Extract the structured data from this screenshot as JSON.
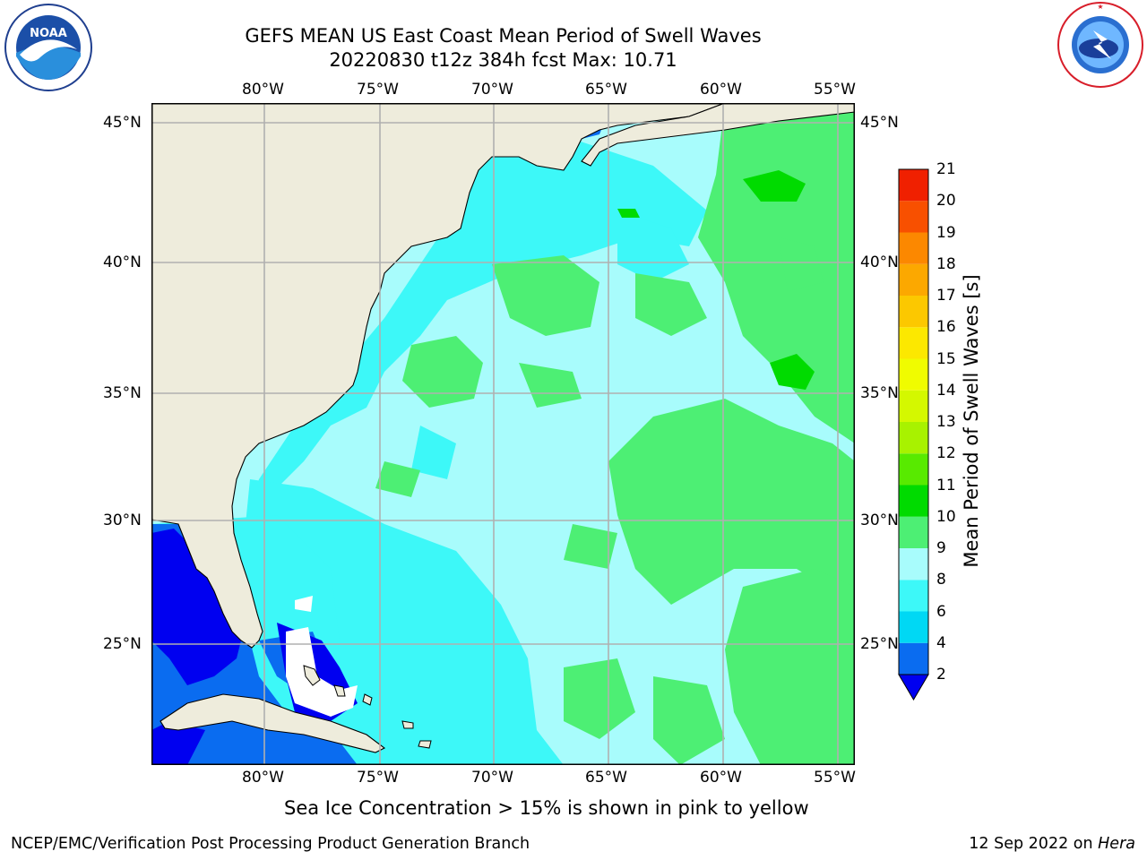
{
  "header": {
    "title_line1": "GEFS MEAN US East Coast Mean Period of Swell Waves",
    "title_line2": "20220830 t12z 384h fcst   Max: 10.71"
  },
  "logos": {
    "left": {
      "text": "NOAA",
      "ring_text": "NATIONAL OCEANIC AND ATMOSPHERIC ADMINISTRATION · U.S. DEPARTMENT OF COMMERCE"
    },
    "right": {
      "ring_text": "NATIONAL WEATHER SERVICE"
    }
  },
  "map": {
    "lon_labels": [
      "80°W",
      "75°W",
      "70°W",
      "65°W",
      "60°W",
      "55°W"
    ],
    "lat_labels": [
      "45°N",
      "40°N",
      "35°N",
      "30°N",
      "25°N"
    ],
    "extent": {
      "lon": [
        -85,
        -54.5
      ],
      "lat": [
        20.5,
        46
      ]
    },
    "grid": true,
    "colors": {
      "land": "#eeecdc",
      "grid": "#b0b0b0",
      "coast": "#000000"
    }
  },
  "colorbar": {
    "label": "Mean Period of Swell Waves [s]",
    "ticks": [
      "2",
      "4",
      "6",
      "8",
      "9",
      "10",
      "11",
      "12",
      "13",
      "14",
      "15",
      "16",
      "17",
      "18",
      "19",
      "20",
      "21"
    ],
    "colors": [
      "#0a6cf0",
      "#00d8f4",
      "#3df8f8",
      "#a8fcfc",
      "#4def74",
      "#00db00",
      "#58ea00",
      "#a8f200",
      "#d4f800",
      "#f0fc00",
      "#fce800",
      "#fcc800",
      "#fca800",
      "#fc8800",
      "#f85000",
      "#f02000"
    ],
    "under_color": "#0000f0"
  },
  "footer": {
    "note": "Sea Ice Concentration > 15% is shown in pink to yellow",
    "credit_left": "NCEP/EMC/Verification Post Processing Product Generation Branch",
    "credit_right_prefix": "12 Sep 2022 on ",
    "credit_right_host": "Hera"
  }
}
